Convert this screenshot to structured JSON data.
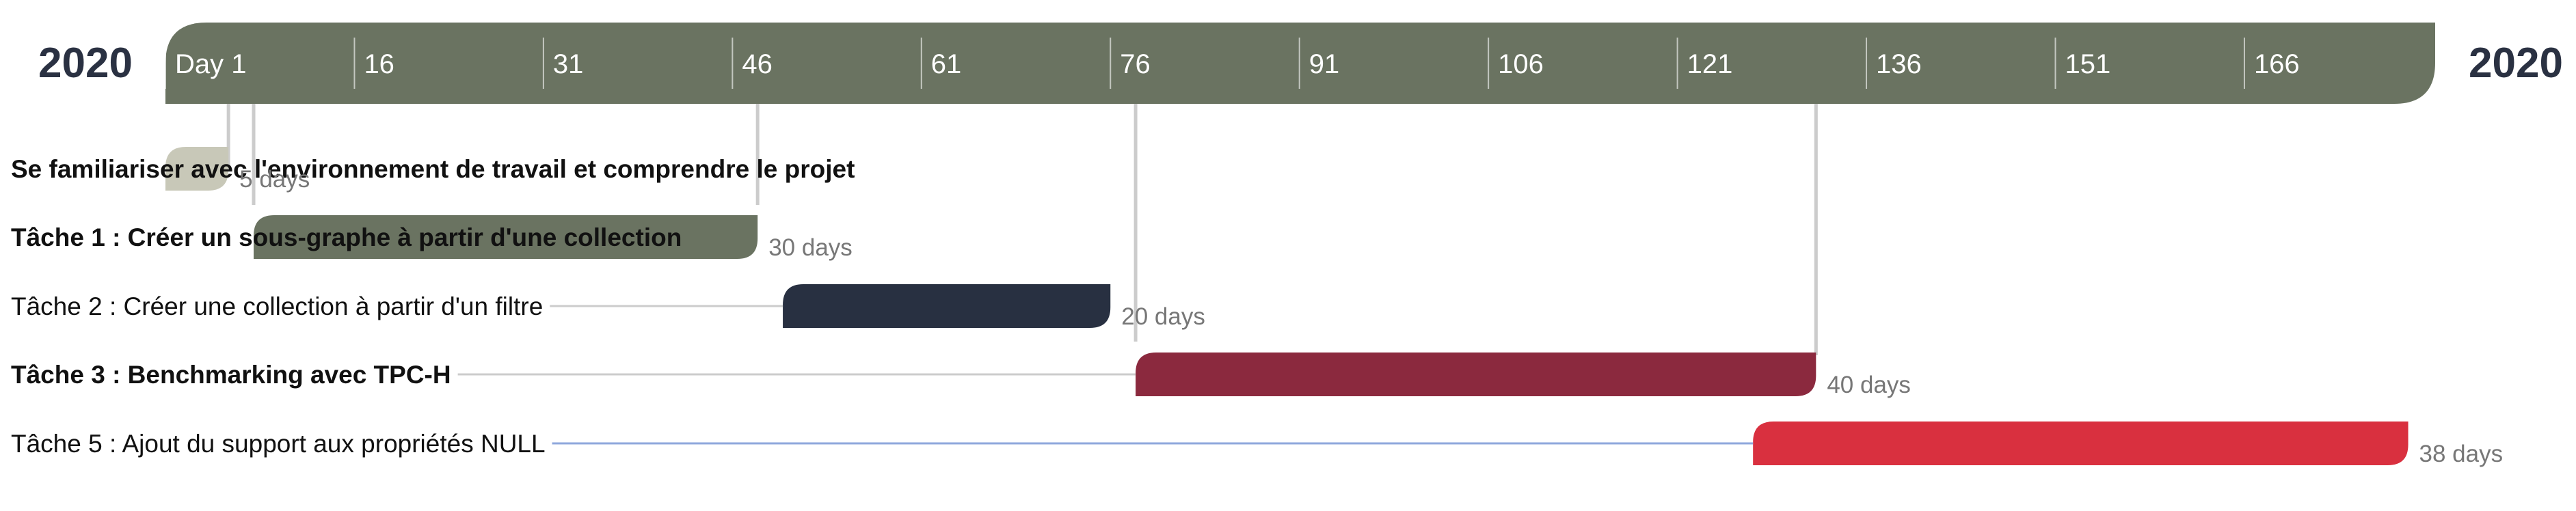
{
  "header": {
    "year_left": "2020",
    "year_right": "2020",
    "band_color": "#6a7361"
  },
  "chart_data": {
    "type": "gantt",
    "title": "",
    "x_unit": "day",
    "x_range": [
      0,
      180
    ],
    "ticks": [
      {
        "value": 0,
        "label": "Day 1"
      },
      {
        "value": 15,
        "label": "16"
      },
      {
        "value": 30,
        "label": "31"
      },
      {
        "value": 45,
        "label": "46"
      },
      {
        "value": 60,
        "label": "61"
      },
      {
        "value": 75,
        "label": "76"
      },
      {
        "value": 90,
        "label": "91"
      },
      {
        "value": 105,
        "label": "106"
      },
      {
        "value": 120,
        "label": "121"
      },
      {
        "value": 135,
        "label": "136"
      },
      {
        "value": 150,
        "label": "151"
      },
      {
        "value": 165,
        "label": "166"
      }
    ],
    "tasks": [
      {
        "label": "Se familiariser avec l'environnement de travail et comprendre le projet",
        "start": 0,
        "duration": 5,
        "duration_label": "5 days",
        "color": "#c8c8b8",
        "bold": true,
        "connector_color": "#cccccc"
      },
      {
        "label": "Tâche 1 : Créer un sous-graphe à partir d'une collection",
        "start": 7,
        "duration": 40,
        "duration_label": "30 days",
        "color": "#6a7361",
        "bold": true,
        "connector_color": "#cccccc"
      },
      {
        "label": "Tâche 2 : Créer une collection à partir d'un filtre",
        "start": 49,
        "duration": 26,
        "duration_label": "20 days",
        "color": "#283041",
        "bold": false,
        "connector_color": "#cccccc"
      },
      {
        "label": "Tâche 3 : Benchmarking avec TPC-H",
        "start": 77,
        "duration": 54,
        "duration_label": "40 days",
        "color": "#8b293e",
        "bold": true,
        "connector_color": "#cccccc"
      },
      {
        "label": "Tâche 5 : Ajout du support aux propriétés NULL",
        "start": 126,
        "duration": 52,
        "duration_label": "38 days",
        "color": "#d9303f",
        "bold": false,
        "connector_color": "#8fa8dc"
      }
    ],
    "dependency_lines": [
      5,
      7,
      47,
      77,
      131
    ]
  }
}
